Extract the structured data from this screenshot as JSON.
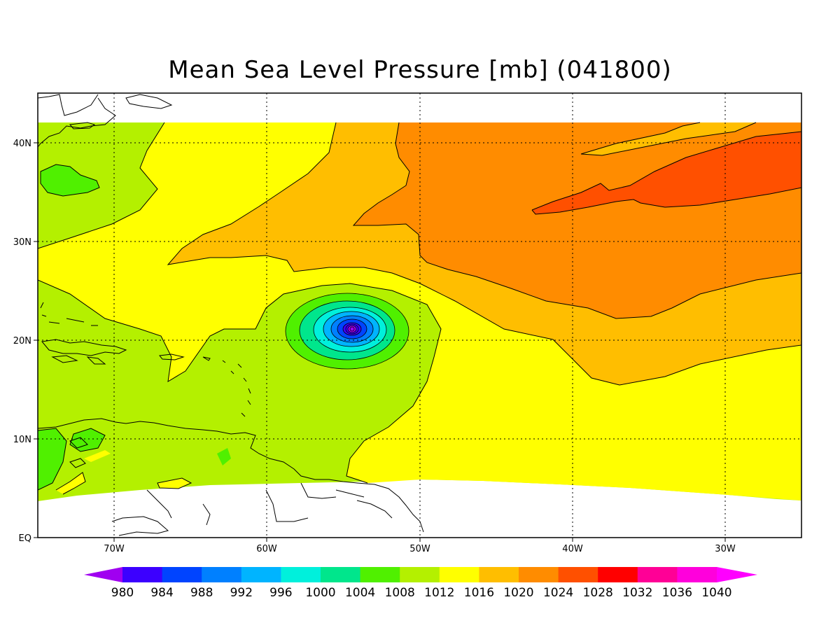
{
  "title": "Mean Sea Level Pressure [mb] (041800)",
  "lat_labels": [
    "40N",
    "30N",
    "20N",
    "10N",
    "EQ"
  ],
  "lon_labels": [
    "70W",
    "60W",
    "50W",
    "40W",
    "30W"
  ],
  "colorbar": {
    "labels": [
      "980",
      "984",
      "988",
      "992",
      "996",
      "1000",
      "1004",
      "1008",
      "1012",
      "1016",
      "1020",
      "1024",
      "1028",
      "1032",
      "1036",
      "1040"
    ],
    "colors": [
      "#a000f0",
      "#3c00ff",
      "#0044ff",
      "#0080ff",
      "#00b4ff",
      "#00f0dc",
      "#00e68c",
      "#50f000",
      "#b4f000",
      "#ffff00",
      "#ffbe00",
      "#ff8c00",
      "#ff5000",
      "#ff0000",
      "#ff0096",
      "#ff00dc",
      "#ff00ff"
    ]
  },
  "field_colors": {
    "below_1004": "#00e68c",
    "band_1004_1008": "#50f000",
    "band_1008_1012": "#b4f000",
    "band_1012_1016": "#ffff00",
    "band_1016_1020": "#ffbe00",
    "band_1020_1024": "#ff8c00",
    "band_1024_1028": "#ff5000",
    "cyclone_core": [
      "#00f0dc",
      "#00b4ff",
      "#0080ff",
      "#0044ff",
      "#3c00ff",
      "#a000f0"
    ]
  }
}
